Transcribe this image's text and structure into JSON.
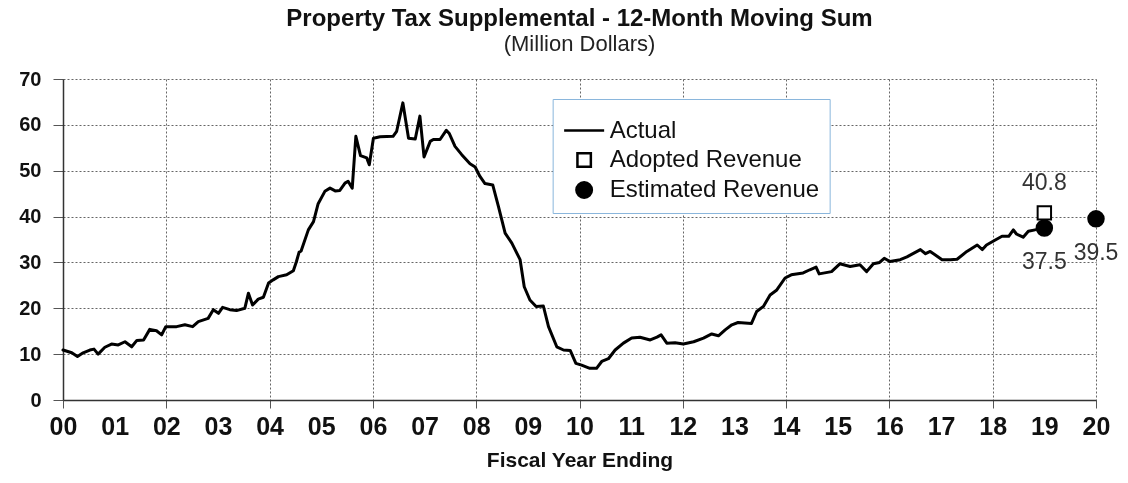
{
  "chart_data": {
    "type": "line",
    "title": "Property Tax Supplemental - 12-Month Moving Sum",
    "subtitle": "(Million Dollars)",
    "xlabel": "Fiscal Year Ending",
    "xlim": [
      0,
      20
    ],
    "xticks": [
      {
        "value": 0,
        "label": "00"
      },
      {
        "value": 1,
        "label": "01"
      },
      {
        "value": 2,
        "label": "02"
      },
      {
        "value": 3,
        "label": "03"
      },
      {
        "value": 4,
        "label": "04"
      },
      {
        "value": 5,
        "label": "05"
      },
      {
        "value": 6,
        "label": "06"
      },
      {
        "value": 7,
        "label": "07"
      },
      {
        "value": 8,
        "label": "08"
      },
      {
        "value": 9,
        "label": "09"
      },
      10,
      11,
      12,
      13,
      14,
      15,
      16,
      17,
      18,
      19,
      20
    ],
    "ylim": [
      0,
      70
    ],
    "yticks": [
      0,
      10,
      20,
      30,
      40,
      50,
      60,
      70
    ],
    "grid": true,
    "legend": "top",
    "series": [
      {
        "name": "Actual",
        "color": "#000000",
        "x": [
          0,
          0.17,
          0.28,
          0.39,
          0.52,
          0.6,
          0.68,
          0.81,
          0.94,
          1.07,
          1.2,
          1.33,
          1.43,
          1.56,
          1.68,
          1.81,
          1.91,
          1.99,
          2.2,
          2.36,
          2.51,
          2.62,
          2.81,
          2.91,
          3.01,
          3.09,
          3.23,
          3.36,
          3.52,
          3.59,
          3.67,
          3.78,
          3.88,
          3.98,
          4.07,
          4.17,
          4.33,
          4.46,
          4.52,
          4.57,
          4.61,
          4.75,
          4.85,
          4.94,
          5.07,
          5.17,
          5.27,
          5.36,
          5.46,
          5.52,
          5.6,
          5.67,
          5.76,
          5.88,
          5.93,
          6.01,
          6.14,
          6.39,
          6.46,
          6.58,
          6.69,
          6.82,
          6.91,
          6.99,
          7.11,
          7.17,
          7.3,
          7.42,
          7.48,
          7.59,
          7.72,
          7.88,
          7.98,
          8.07,
          8.17,
          8.32,
          8.43,
          8.56,
          8.69,
          8.85,
          8.93,
          9.04,
          9.16,
          9.3,
          9.4,
          9.56,
          9.69,
          9.82,
          9.93,
          10.04,
          10.2,
          10.33,
          10.43,
          10.56,
          10.69,
          10.85,
          11.01,
          11.17,
          11.37,
          11.5,
          11.58,
          11.69,
          11.85,
          12.01,
          12.21,
          12.4,
          12.56,
          12.69,
          12.82,
          12.95,
          13.07,
          13.33,
          13.43,
          13.56,
          13.69,
          13.82,
          13.98,
          14.1,
          14.33,
          14.46,
          14.58,
          14.64,
          14.88,
          15.04,
          15.24,
          15.43,
          15.56,
          15.69,
          15.81,
          15.9,
          16.01,
          16.21,
          16.34,
          16.6,
          16.7,
          16.79,
          17.02,
          17.18,
          17.31,
          17.5,
          17.7,
          17.8,
          17.88,
          18.05,
          18.18,
          18.31,
          18.4,
          18.46,
          18.59,
          18.69,
          18.82
        ],
        "values": [
          10.9,
          10.3,
          9.5,
          10.3,
          10.9,
          11.1,
          10.0,
          11.5,
          12.2,
          12.0,
          12.7,
          11.6,
          13.0,
          13.1,
          15.4,
          15.1,
          14.2,
          16.0,
          16.0,
          16.4,
          16.0,
          17.1,
          17.8,
          19.7,
          18.9,
          20.2,
          19.7,
          19.5,
          20.0,
          23.3,
          20.7,
          22.0,
          22.4,
          25.5,
          26.2,
          26.9,
          27.3,
          28.2,
          30.2,
          32.2,
          32.5,
          37.1,
          38.9,
          42.8,
          45.5,
          46.2,
          45.6,
          45.7,
          47.3,
          47.7,
          46.2,
          57.5,
          53.3,
          52.8,
          51.3,
          57.1,
          57.4,
          57.5,
          58.6,
          64.8,
          57.1,
          56.9,
          61.9,
          53.0,
          56.4,
          56.8,
          56.8,
          58.8,
          58.1,
          55.3,
          53.5,
          51.5,
          50.8,
          48.8,
          47.2,
          46.9,
          42.2,
          36.4,
          34.2,
          30.6,
          24.7,
          21.8,
          20.4,
          20.5,
          16.0,
          11.6,
          10.9,
          10.8,
          8.0,
          7.6,
          6.9,
          6.9,
          8.4,
          9.0,
          10.9,
          12.4,
          13.5,
          13.7,
          13.1,
          13.7,
          14.2,
          12.4,
          12.5,
          12.2,
          12.7,
          13.5,
          14.4,
          14.0,
          15.3,
          16.4,
          16.9,
          16.7,
          19.3,
          20.4,
          22.9,
          24.0,
          26.6,
          27.3,
          27.7,
          28.4,
          29.0,
          27.5,
          28.0,
          29.7,
          29.1,
          29.5,
          28.0,
          29.7,
          30.0,
          30.9,
          30.2,
          30.6,
          31.2,
          32.8,
          31.9,
          32.4,
          30.6,
          30.6,
          30.7,
          32.4,
          33.8,
          32.8,
          33.8,
          34.9,
          35.7,
          35.7,
          37.1,
          36.2,
          35.5,
          36.8,
          37.1
        ]
      },
      {
        "name": "Adopted Revenue",
        "type": "scatter",
        "marker": "square",
        "color": "#000000",
        "x": [
          19
        ],
        "values": [
          40.8
        ],
        "value_labels": [
          "40.8"
        ]
      },
      {
        "name": "Estimated Revenue",
        "type": "scatter",
        "marker": "circle",
        "color": "#000000",
        "x": [
          19,
          20
        ],
        "values": [
          37.5,
          39.5
        ],
        "value_labels": [
          "37.5",
          "39.5"
        ]
      }
    ]
  }
}
